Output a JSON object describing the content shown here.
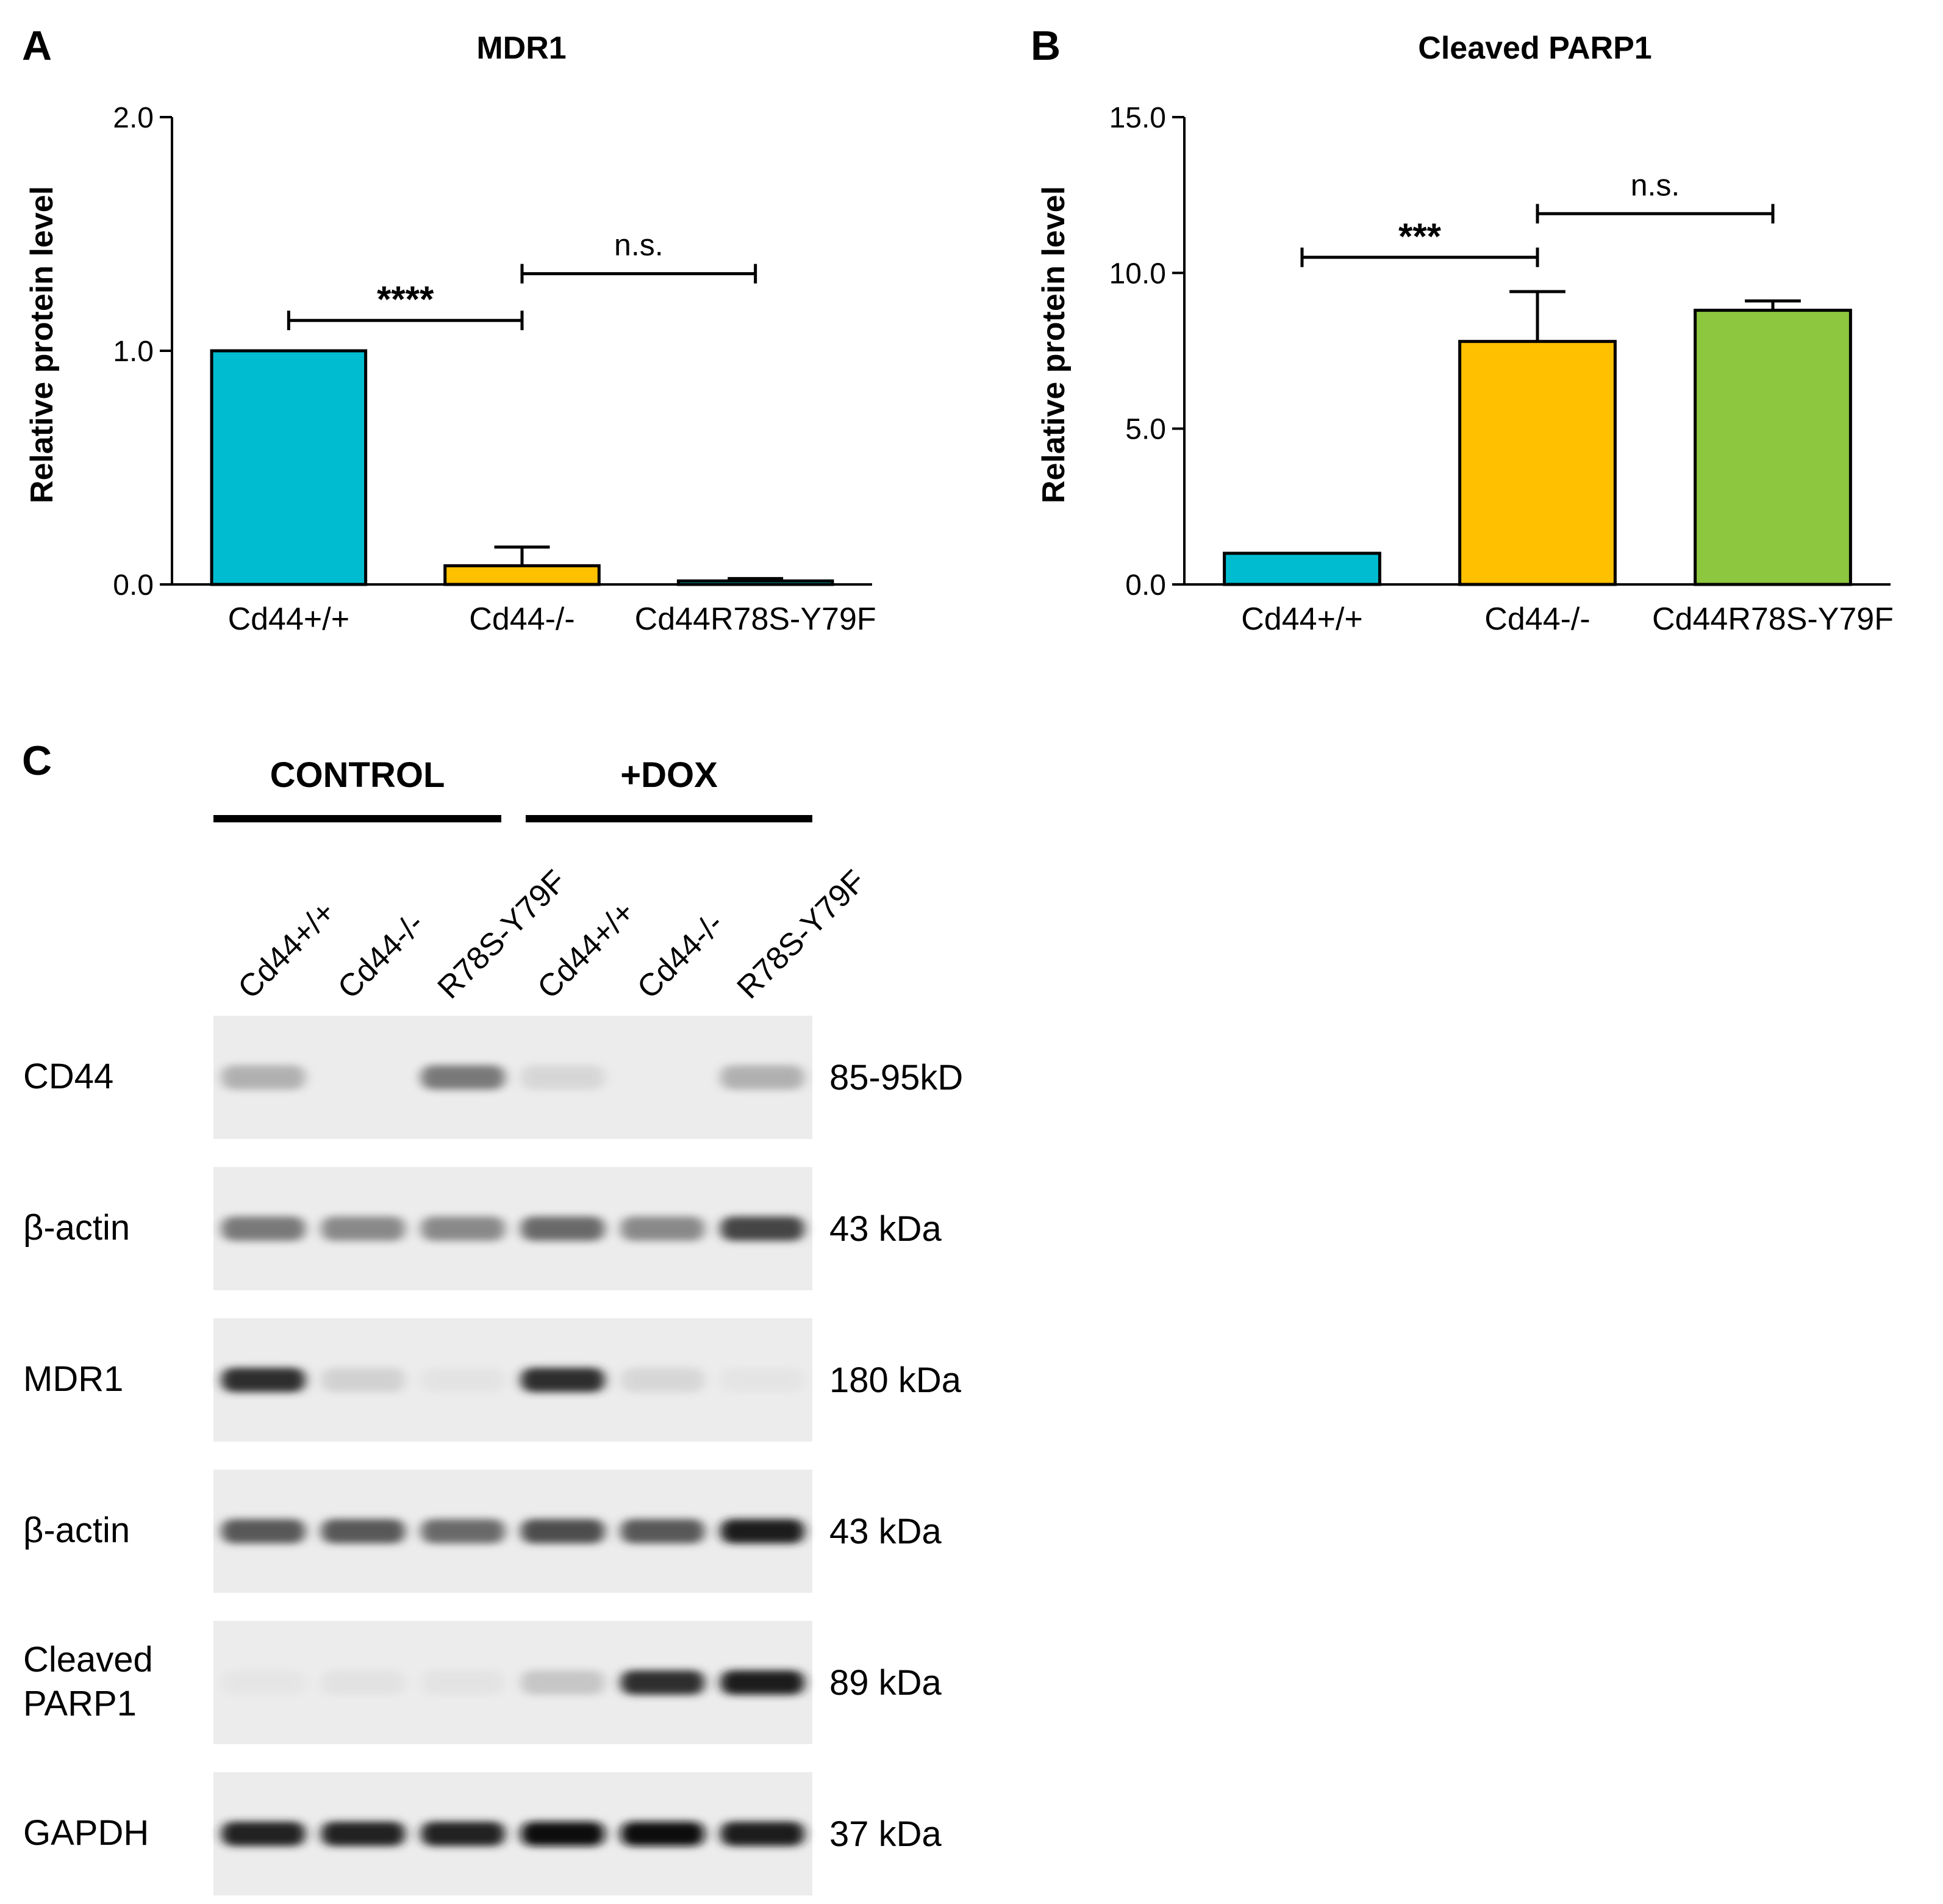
{
  "panels": {
    "a": {
      "letter": "A"
    },
    "b": {
      "letter": "B"
    },
    "c": {
      "letter": "C"
    }
  },
  "chart_data": [
    {
      "type": "bar",
      "title": "MDR1",
      "ylabel": "Relative protein level",
      "xlabel": "",
      "categories": [
        "Cd44+/+",
        "Cd44-/-",
        "Cd44R78S-Y79F"
      ],
      "values": [
        1.0,
        0.08,
        0.015
      ],
      "errors": [
        0,
        0.08,
        0.01
      ],
      "colors": [
        "#00bcd0",
        "#ffc000",
        "#00bcd0"
      ],
      "ylim": [
        0,
        2.0
      ],
      "yticks": [
        "0.0",
        "1.0",
        "2.0"
      ],
      "yticks_values": [
        0,
        1,
        2
      ],
      "grid": false,
      "significance": [
        {
          "from": 0,
          "to": 1,
          "label": "****",
          "y": 1.13
        },
        {
          "from": 1,
          "to": 2,
          "label": "n.s.",
          "y": 1.33
        }
      ]
    },
    {
      "type": "bar",
      "title": "Cleaved PARP1",
      "ylabel": "Relative protein level",
      "xlabel": "",
      "categories": [
        "Cd44+/+",
        "Cd44-/-",
        "Cd44R78S-Y79F"
      ],
      "values": [
        1.0,
        7.8,
        8.8
      ],
      "errors": [
        0,
        1.6,
        0.3
      ],
      "colors": [
        "#00bcd0",
        "#ffc000",
        "#8dc63f"
      ],
      "ylim": [
        0,
        15.0
      ],
      "yticks": [
        "0.0",
        "5.0",
        "10.0",
        "15.0"
      ],
      "yticks_values": [
        0,
        5,
        10,
        15
      ],
      "grid": false,
      "significance": [
        {
          "from": 0,
          "to": 1,
          "label": "***",
          "y": 10.5
        },
        {
          "from": 1,
          "to": 2,
          "label": "n.s.",
          "y": 11.9
        }
      ]
    }
  ],
  "blot": {
    "groups": [
      {
        "label": "CONTROL"
      },
      {
        "label": "+DOX"
      }
    ],
    "lanes": [
      "Cd44+/+",
      "Cd44-/-",
      "R78S-Y79F",
      "Cd44+/+",
      "Cd44-/-",
      "R78S-Y79F"
    ],
    "rows": [
      {
        "name": "CD44",
        "label_lines": [
          "CD44"
        ],
        "size": "85-95kD",
        "intensities": [
          0.35,
          0.0,
          0.55,
          0.15,
          0.0,
          0.35
        ]
      },
      {
        "name": "beta-actin",
        "label_lines": [
          "β-actin"
        ],
        "size": "43 kDa",
        "intensities": [
          0.55,
          0.5,
          0.5,
          0.6,
          0.5,
          0.75
        ]
      },
      {
        "name": "MDR1",
        "label_lines": [
          "MDR1"
        ],
        "size": "180 kDa",
        "intensities": [
          0.85,
          0.18,
          0.05,
          0.85,
          0.15,
          0.04
        ]
      },
      {
        "name": "beta-actin-2",
        "label_lines": [
          "β-actin"
        ],
        "size": "43 kDa",
        "intensities": [
          0.65,
          0.65,
          0.6,
          0.7,
          0.65,
          0.95
        ]
      },
      {
        "name": "cleaved-parp1",
        "label_lines": [
          "Cleaved",
          "PARP1"
        ],
        "size": "89 kDa",
        "intensities": [
          0.03,
          0.06,
          0.05,
          0.25,
          0.85,
          0.95
        ]
      },
      {
        "name": "gapdh",
        "label_lines": [
          "GAPDH"
        ],
        "size": "37 kDa",
        "intensities": [
          0.9,
          0.9,
          0.9,
          1.0,
          1.0,
          0.95
        ]
      }
    ]
  }
}
